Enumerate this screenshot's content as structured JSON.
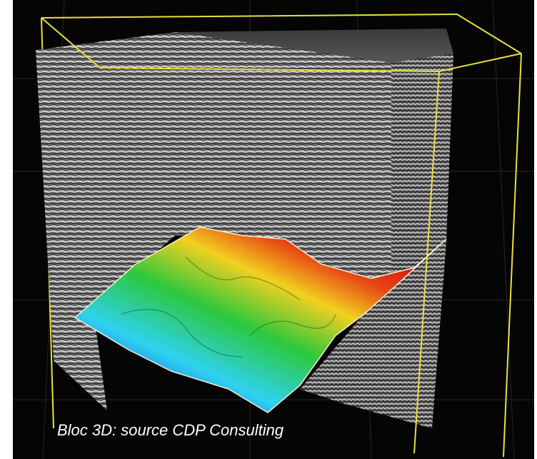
{
  "caption": "Bloc 3D: source CDP Consulting"
}
